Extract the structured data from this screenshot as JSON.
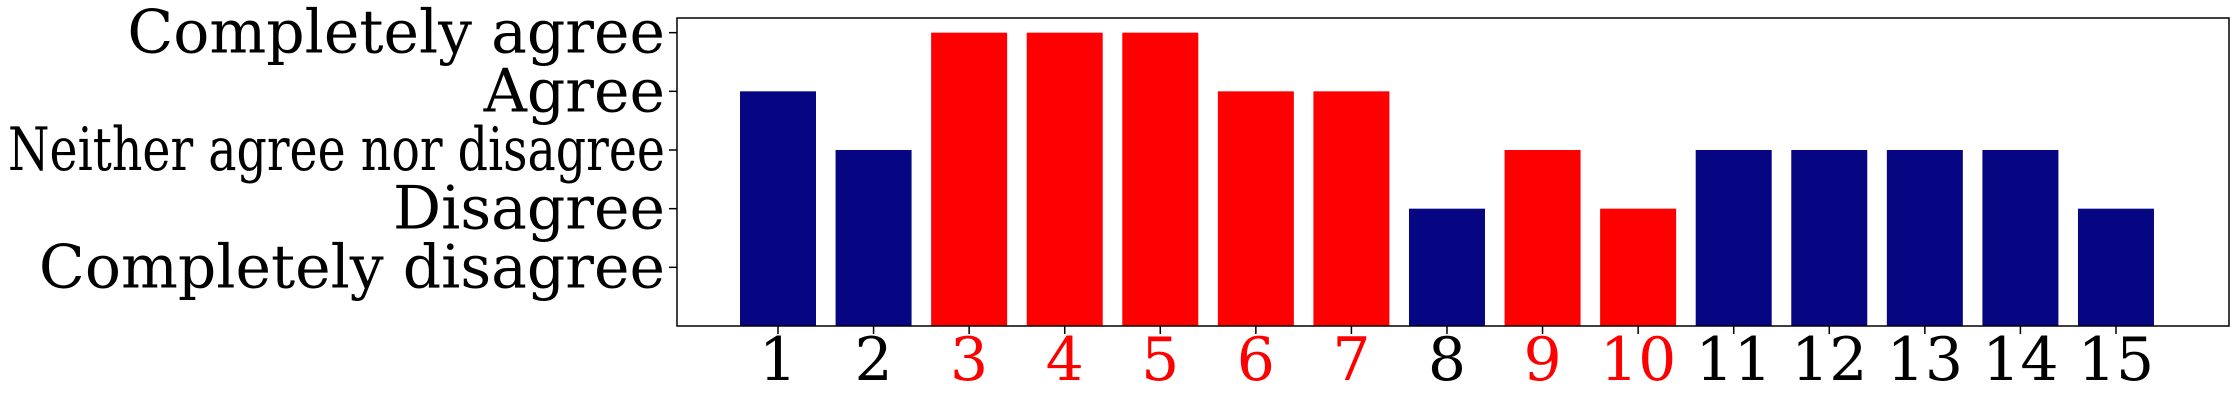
{
  "chart_data": {
    "type": "bar",
    "title": "",
    "xlabel": "",
    "ylabel": "",
    "categories": [
      "1",
      "2",
      "3",
      "4",
      "5",
      "6",
      "7",
      "8",
      "9",
      "10",
      "11",
      "12",
      "13",
      "14",
      "15"
    ],
    "values": [
      4,
      3,
      5,
      5,
      5,
      4,
      4,
      2,
      3,
      2,
      3,
      3,
      3,
      3,
      2
    ],
    "ylim": [
      0,
      5.25
    ],
    "ytick_values": [
      1,
      2,
      3,
      4,
      5
    ],
    "ytick_labels": [
      "Completely disagree",
      "Disagree",
      "Neither agree nor disagree",
      "Agree",
      "Completely agree"
    ],
    "highlighted": [
      false,
      false,
      true,
      true,
      true,
      true,
      true,
      false,
      true,
      true,
      false,
      false,
      false,
      false,
      false
    ],
    "colors": {
      "default_bar": "#060683",
      "highlight_bar": "#ff0000",
      "default_label": "#000000",
      "highlight_label": "#ff0000",
      "frame": "#000000"
    },
    "grid": false,
    "legend": "none"
  }
}
